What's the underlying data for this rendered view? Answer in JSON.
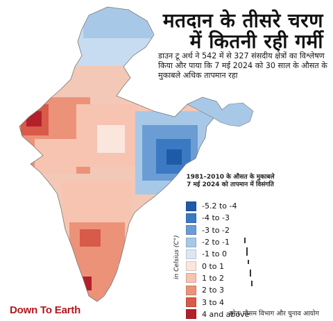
{
  "title": {
    "line1": "मतदान के तीसरे चरण",
    "line2": "में कितनी रही गर्मी"
  },
  "subtitle": "डाउन टू अर्थ ने 542 में से 327 संसदीय क्षेत्रों का विश्लेषण किया और पाया कि 7 मई 2024 को 30 साल के औसत के मुकाबले अधिक तापमान रहा",
  "legend": {
    "heading_line1": "1981–2010 के औसत के मुकाबले",
    "heading_line2": "7 मई  2024 को तापमान में विसंगति",
    "axis_label": "in Celsius (C°)",
    "items": [
      {
        "label": "-5.2 to -4",
        "color": "#1f5aa8"
      },
      {
        "label": "-4 to -3",
        "color": "#3b79c3"
      },
      {
        "label": "-3 to -2",
        "color": "#6b9dd4"
      },
      {
        "label": "-2 to -1",
        "color": "#a8c8e8"
      },
      {
        "label": "-1 to 0",
        "color": "#dbe8f4"
      },
      {
        "label": "0 to 1",
        "color": "#fbe6de"
      },
      {
        "label": "1 to 2",
        "color": "#f6c4b0"
      },
      {
        "label": "2 to 3",
        "color": "#ec9279"
      },
      {
        "label": "3 to 4",
        "color": "#d85a49"
      },
      {
        "label": "4 and above",
        "color": "#b3202a"
      }
    ]
  },
  "brand": "Down To Earth",
  "source": "स्रोतः मौसम विभाग और चुनाव आयोग"
}
